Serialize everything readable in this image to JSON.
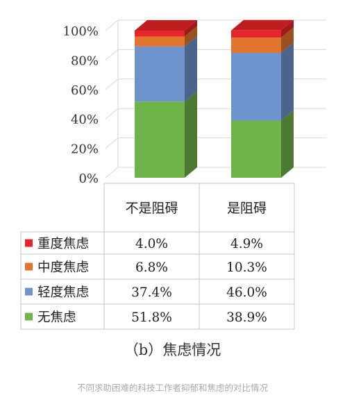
{
  "chart_data": {
    "type": "bar",
    "stacked": true,
    "three_d": true,
    "categories": [
      "不是阻碍",
      "是阻碍"
    ],
    "series": [
      {
        "name": "无焦虑",
        "values": [
          51.8,
          38.9
        ],
        "labels": [
          "51.8%",
          "38.9%"
        ],
        "color": "#70b449"
      },
      {
        "name": "轻度焦虑",
        "values": [
          37.4,
          46.0
        ],
        "labels": [
          "37.4%",
          "46.0%"
        ],
        "color": "#6f93cd"
      },
      {
        "name": "中度焦虑",
        "values": [
          6.8,
          10.3
        ],
        "labels": [
          "6.8%",
          "10.3%"
        ],
        "color": "#e2752d"
      },
      {
        "name": "重度焦虑",
        "values": [
          4.0,
          4.9
        ],
        "labels": [
          "4.0%",
          "4.9%"
        ],
        "color": "#e8252a"
      }
    ],
    "yticks": [
      "0%",
      "20%",
      "40%",
      "60%",
      "80%",
      "100%"
    ],
    "ylim": [
      0,
      100
    ],
    "grid": true,
    "legend": "data-table-left",
    "caption": "（b）焦虑情况"
  },
  "page": {
    "figure_note": "不同求助困难的科技工作者抑郁和焦虑的对比情况"
  }
}
